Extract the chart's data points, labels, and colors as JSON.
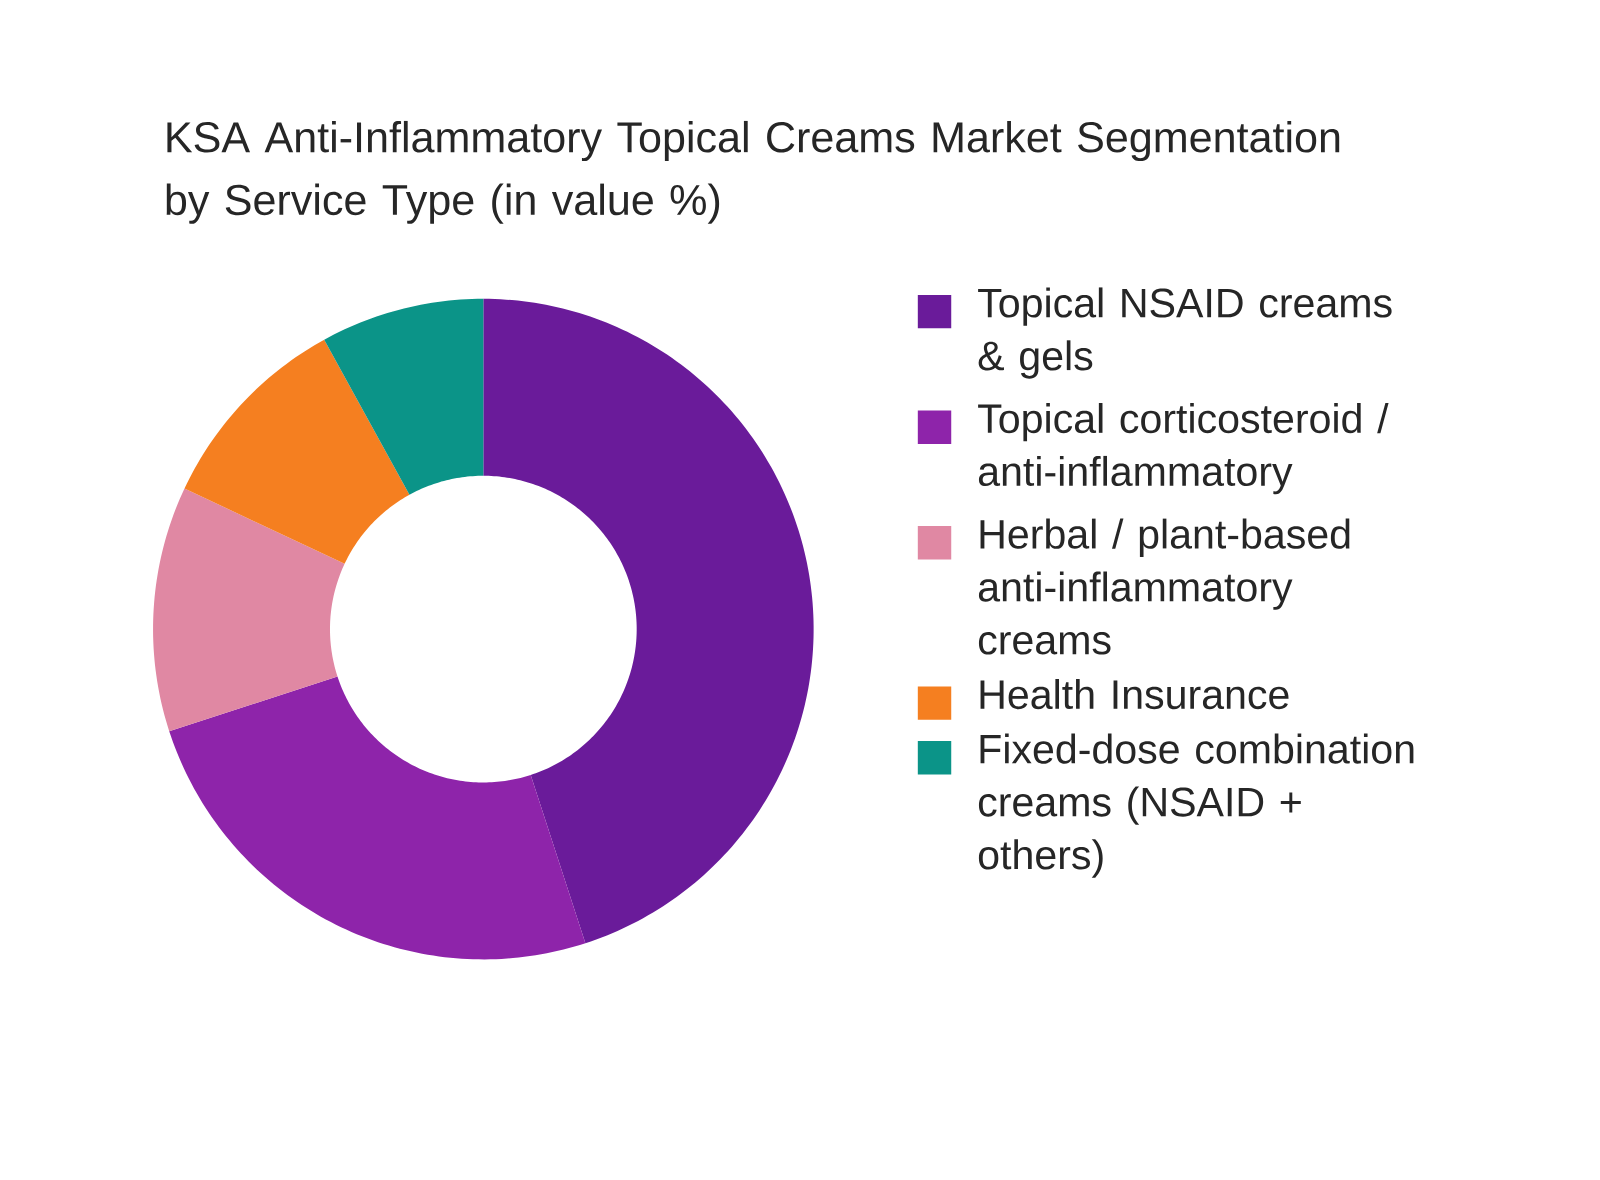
{
  "chart_data": {
    "type": "donut",
    "title": "KSA Anti-Inflammatory Topical Creams Market Segmentation by Service Type (in value %)",
    "categories": [
      "Topical NSAID creams & gels",
      "Topical corticosteroid / anti-inflammatory",
      "Herbal / plant-based anti-inflammatory creams",
      "Health Insurance",
      "Fixed-dose combination creams (NSAID + others)"
    ],
    "values": [
      45,
      25,
      12,
      10,
      8
    ],
    "colors": [
      "#6a1b9a",
      "#8e24aa",
      "#e088a3",
      "#f57f20",
      "#0b9488"
    ],
    "legend": "right"
  }
}
